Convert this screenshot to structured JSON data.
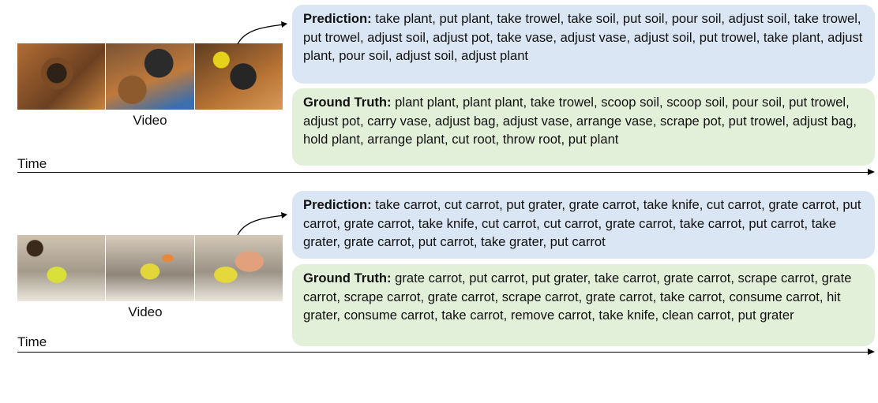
{
  "examples": [
    {
      "video_label": "Video",
      "time_label": "Time",
      "prediction_label": "Prediction:",
      "prediction_text": "take plant, put plant, take trowel, take soil, put soil, pour soil, adjust soil, take trowel, put trowel, adjust soil, adjust pot, take vase, adjust vase, adjust soil, put trowel, take plant, adjust plant, pour soil, adjust soil, adjust plant",
      "ground_truth_label": "Ground Truth:",
      "ground_truth_text": "plant plant, plant plant, take trowel, scoop soil, scoop soil, pour soil, put trowel, adjust pot, carry vase, adjust bag, adjust vase, arrange vase, scrape pot, put trowel, adjust bag, hold plant, arrange plant, cut root, throw root, put plant"
    },
    {
      "video_label": "Video",
      "time_label": "Time",
      "prediction_label": "Prediction:",
      "prediction_text": "take carrot, cut carrot, put grater, grate carrot, take knife, cut carrot, grate carrot, put carrot, grate carrot, take knife, cut carrot, cut carrot, grate carrot, take carrot, put carrot, take grater, grate carrot, put carrot, take grater, put carrot",
      "ground_truth_label": "Ground Truth:",
      "ground_truth_text": "grate carrot, put carrot, put grater, take carrot, grate carrot, scrape carrot, grate carrot, scrape carrot, grate carrot, scrape carrot, grate carrot, take carrot, consume carrot, hit grater, consume carrot, take carrot, remove carrot, take knife, clean carrot, put grater"
    }
  ],
  "colors": {
    "prediction_box": "#dae6f3",
    "ground_truth_box": "#e2efd9",
    "axis": "#000000"
  }
}
